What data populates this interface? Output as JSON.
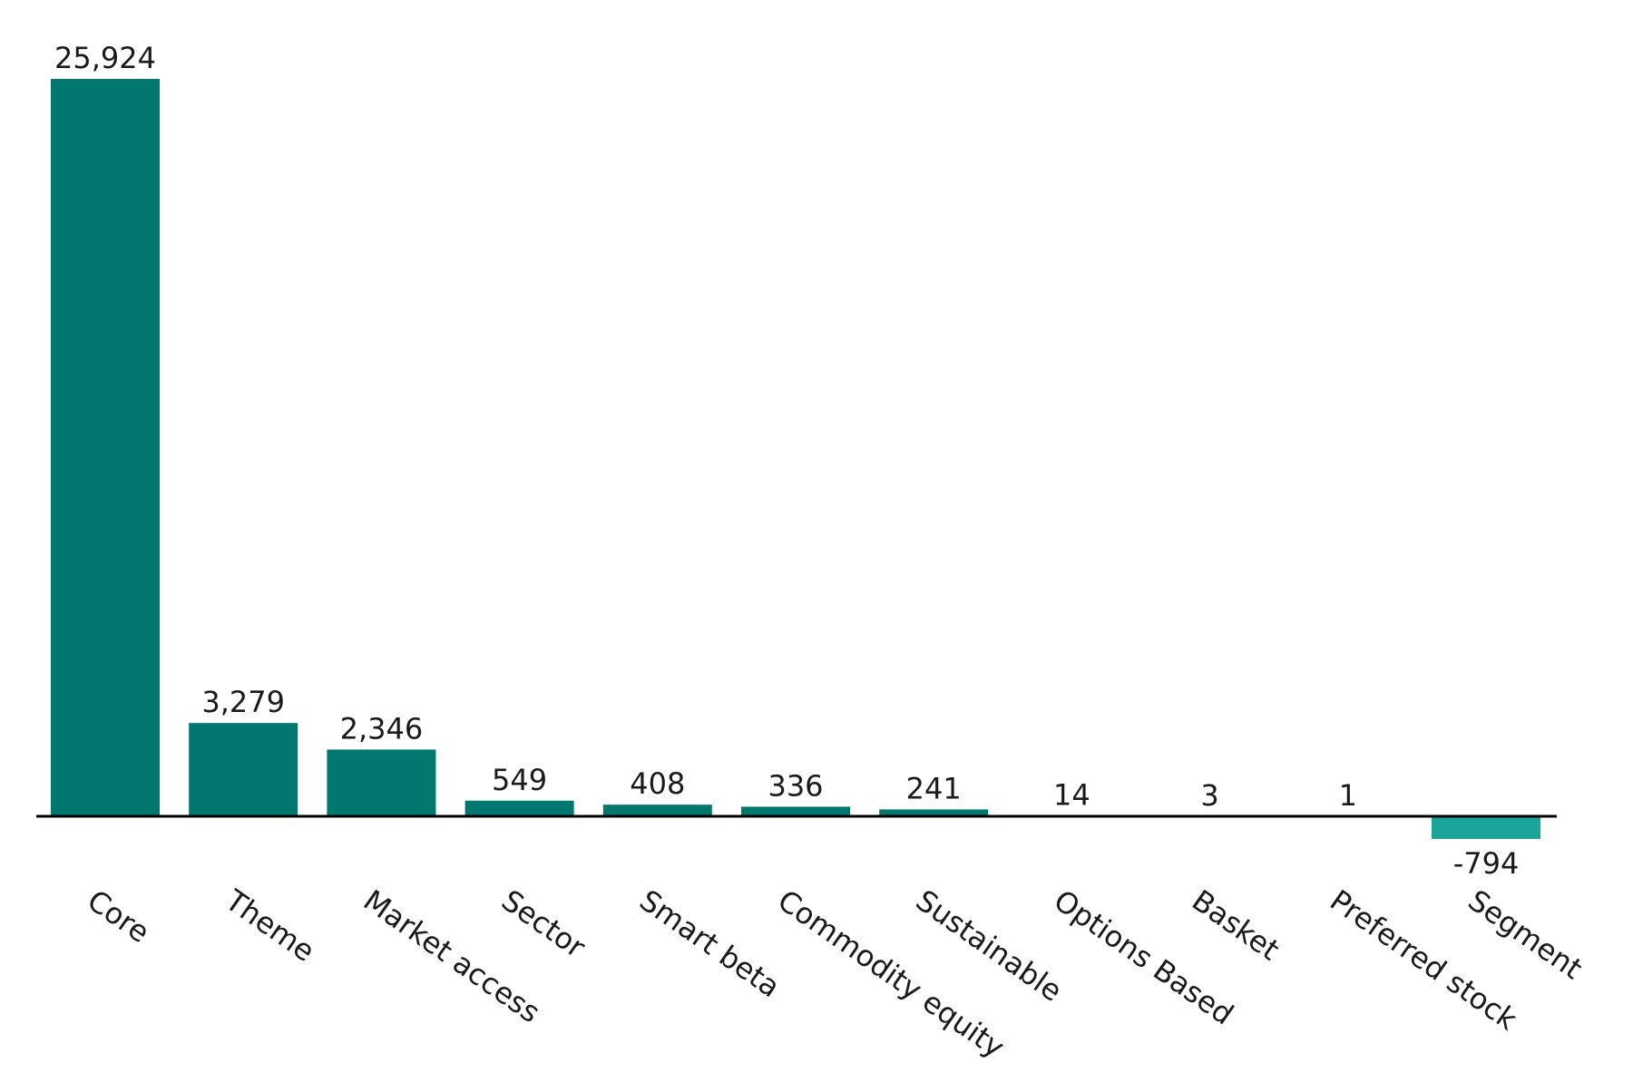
{
  "chart_data": {
    "type": "bar",
    "categories": [
      "Core",
      "Theme",
      "Market access",
      "Sector",
      "Smart beta",
      "Commodity equity",
      "Sustainable",
      "Options Based",
      "Basket",
      "Preferred stock",
      "Segment"
    ],
    "values": [
      25924,
      3279,
      2346,
      549,
      408,
      336,
      241,
      14,
      3,
      1,
      -794
    ],
    "value_labels": [
      "25,924",
      "3,279",
      "2,346",
      "549",
      "408",
      "336",
      "241",
      "14",
      "3",
      "1",
      "-794"
    ],
    "title": "",
    "xlabel": "",
    "ylabel": "",
    "ylim": [
      -794,
      25924
    ],
    "grid": false,
    "legend": "none",
    "colors": {
      "positive": "#00786F",
      "negative": "#1BA49A",
      "axis": "#000000",
      "text": "#1a1a1a"
    }
  }
}
